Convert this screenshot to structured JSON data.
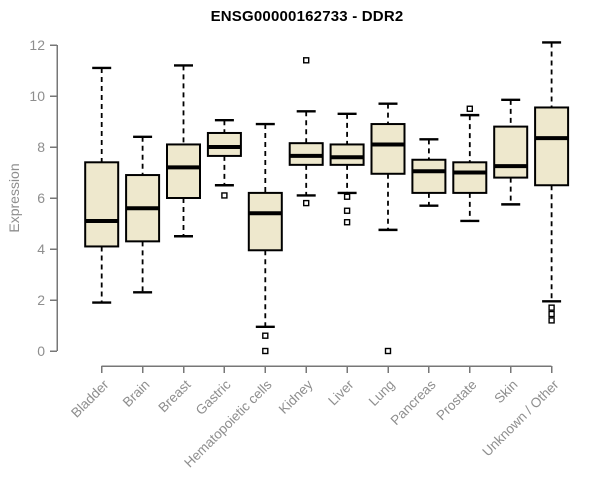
{
  "chart_data": {
    "type": "boxplot",
    "title": "ENSG00000162733 - DDR2",
    "ylabel": "Expression",
    "xlabel": "",
    "ylim": [
      0,
      12
    ],
    "yticks": [
      0,
      2,
      4,
      6,
      8,
      10,
      12
    ],
    "grid": false,
    "legend": "none",
    "categories": [
      "Bladder",
      "Brain",
      "Breast",
      "Gastric",
      "Hematopoietic cells",
      "Kidney",
      "Liver",
      "Lung",
      "Pancreas",
      "Prostate",
      "Skin",
      "Unknown / Other"
    ],
    "series": [
      {
        "name": "Bladder",
        "low": 1.9,
        "q1": 4.1,
        "median": 5.1,
        "q3": 7.4,
        "high": 11.1,
        "outliers": []
      },
      {
        "name": "Brain",
        "low": 2.3,
        "q1": 4.3,
        "median": 5.6,
        "q3": 6.9,
        "high": 8.4,
        "outliers": []
      },
      {
        "name": "Breast",
        "low": 4.5,
        "q1": 6.0,
        "median": 7.2,
        "q3": 8.1,
        "high": 11.2,
        "outliers": []
      },
      {
        "name": "Gastric",
        "low": 6.5,
        "q1": 7.65,
        "median": 8.0,
        "q3": 8.55,
        "high": 9.05,
        "outliers": [
          6.1
        ]
      },
      {
        "name": "Hematopoietic cells",
        "low": 0.95,
        "q1": 3.95,
        "median": 5.4,
        "q3": 6.2,
        "high": 8.9,
        "outliers": [
          0.6,
          0.0
        ]
      },
      {
        "name": "Kidney",
        "low": 6.1,
        "q1": 7.3,
        "median": 7.65,
        "q3": 8.15,
        "high": 9.4,
        "outliers": [
          11.4,
          5.8
        ]
      },
      {
        "name": "Liver",
        "low": 6.2,
        "q1": 7.3,
        "median": 7.6,
        "q3": 8.1,
        "high": 9.3,
        "outliers": [
          6.05,
          5.5,
          5.05
        ]
      },
      {
        "name": "Lung",
        "low": 4.75,
        "q1": 6.95,
        "median": 8.1,
        "q3": 8.9,
        "high": 9.7,
        "outliers": [
          0.0
        ]
      },
      {
        "name": "Pancreas",
        "low": 5.7,
        "q1": 6.2,
        "median": 7.05,
        "q3": 7.5,
        "high": 8.3,
        "outliers": []
      },
      {
        "name": "Prostate",
        "low": 5.1,
        "q1": 6.2,
        "median": 7.0,
        "q3": 7.4,
        "high": 9.25,
        "outliers": [
          9.5
        ]
      },
      {
        "name": "Skin",
        "low": 5.75,
        "q1": 6.8,
        "median": 7.25,
        "q3": 8.8,
        "high": 9.85,
        "outliers": []
      },
      {
        "name": "Unknown / Other",
        "low": 1.95,
        "q1": 6.5,
        "median": 8.35,
        "q3": 9.55,
        "high": 12.1,
        "outliers": [
          1.7,
          1.45,
          1.2
        ]
      }
    ],
    "colors": {
      "box_fill": "#EEE8CD",
      "box_stroke": "#000000",
      "median": "#000000",
      "whisker": "#000000",
      "axis": "#777777",
      "tick_label": "#8e8e8e",
      "title": "#000000",
      "background": "#ffffff"
    }
  }
}
